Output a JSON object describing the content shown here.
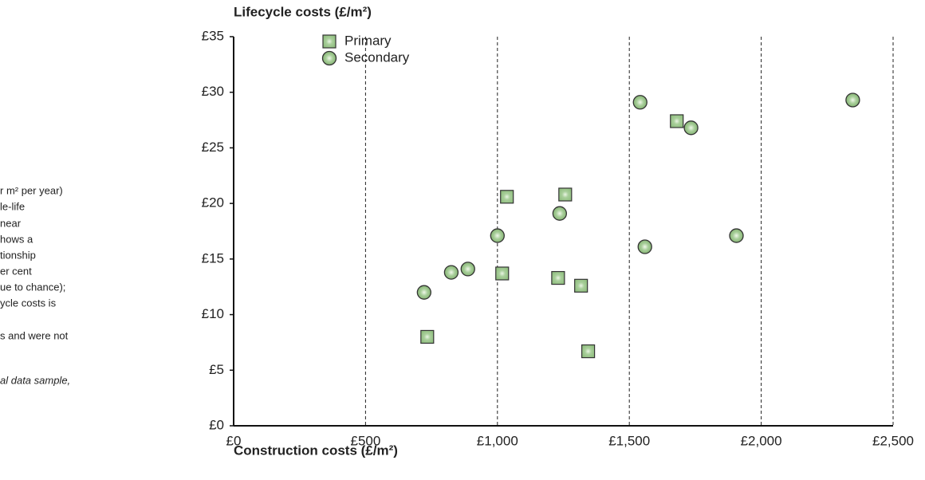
{
  "chart_data": {
    "type": "scatter",
    "y_label": "Lifecycle costs (£/m²)",
    "x_label": "Construction costs (£/m²)",
    "notes": [
      "r m² per year)",
      "le-life",
      "near",
      "hows a",
      "tionship",
      "er cent",
      "ue to chance);",
      "ycle costs is",
      "s and were not"
    ],
    "source_note": "al data sample,",
    "legend": "top-left",
    "grid": true,
    "xlim": [
      0,
      2500
    ],
    "xticks": [
      {
        "value": 0,
        "label": "£0"
      },
      {
        "value": 500,
        "label": "£500"
      },
      {
        "value": 1000,
        "label": "£1,000"
      },
      {
        "value": 1500,
        "label": "£1,500"
      },
      {
        "value": 2000,
        "label": "£2,000"
      },
      {
        "value": 2500,
        "label": "£2,500"
      }
    ],
    "ylim": [
      0,
      35
    ],
    "yticks": [
      {
        "value": 0,
        "label": "£0"
      },
      {
        "value": 5,
        "label": "£5"
      },
      {
        "value": 10,
        "label": "£10"
      },
      {
        "value": 15,
        "label": "£15"
      },
      {
        "value": 20,
        "label": "£20"
      },
      {
        "value": 25,
        "label": "£25"
      },
      {
        "value": 30,
        "label": "£30"
      },
      {
        "value": 35,
        "label": "£35"
      }
    ],
    "series": [
      {
        "name": "Primary",
        "color": "#a9cf9b",
        "marker": "square",
        "x": [
          1036,
          1257,
          1680,
          1018,
          1230,
          1317,
          734,
          1344
        ],
        "values": [
          20.6,
          20.8,
          27.4,
          13.7,
          13.3,
          12.6,
          8.0,
          6.7
        ]
      },
      {
        "name": "Secondary",
        "color": "#a9cf9b",
        "marker": "circle",
        "x": [
          1541,
          2347,
          1734,
          1236,
          1000,
          1559,
          1906,
          825,
          888,
          722
        ],
        "values": [
          29.1,
          29.3,
          26.8,
          19.1,
          17.1,
          16.1,
          17.1,
          13.8,
          14.1,
          12.0
        ]
      }
    ]
  }
}
